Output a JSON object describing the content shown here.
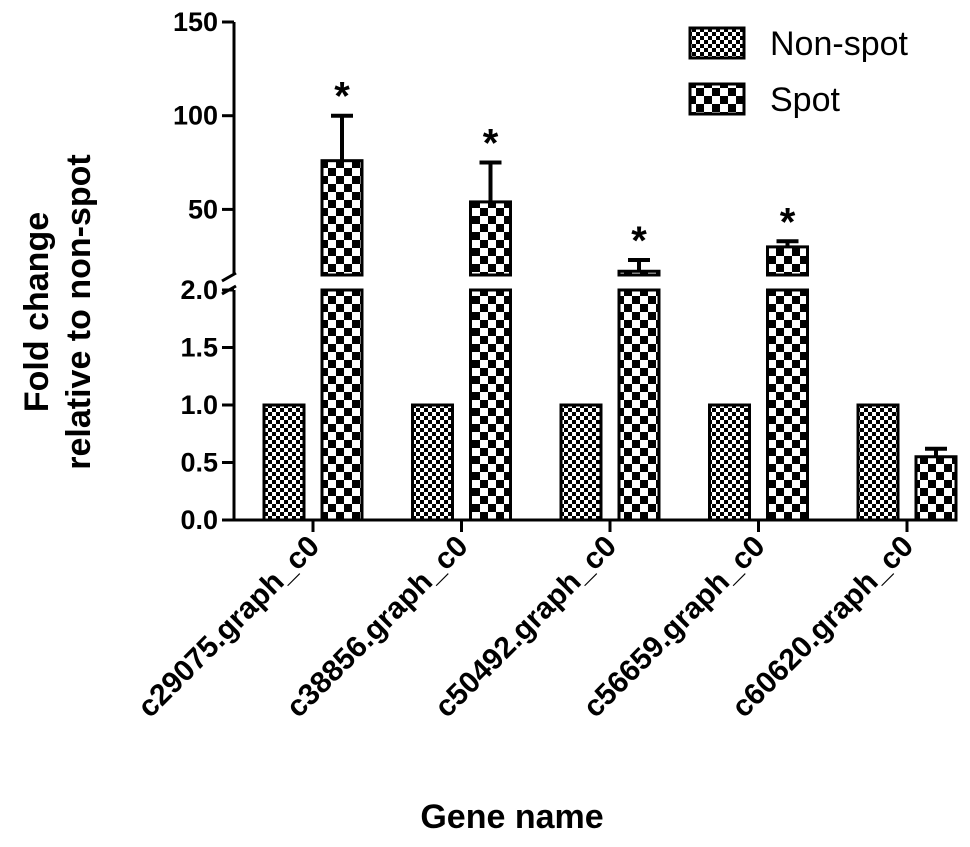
{
  "chart_data": {
    "type": "bar",
    "categories": [
      "c29075.graph_c0",
      "c38856.graph_c0",
      "c50492.graph_c0",
      "c56659.graph_c0",
      "c60620.graph_c0"
    ],
    "series": [
      {
        "name": "Non-spot",
        "values": [
          1.0,
          1.0,
          1.0,
          1.0,
          1.0
        ],
        "errors": [
          0,
          0,
          0,
          0,
          0
        ],
        "pattern": "fine-check"
      },
      {
        "name": "Spot",
        "values": [
          76,
          54,
          17,
          30,
          0.55
        ],
        "errors": [
          24,
          21,
          6,
          3,
          0.07
        ],
        "pattern": "coarse-check"
      }
    ],
    "significance": [
      "*",
      "*",
      "*",
      "*",
      ""
    ],
    "xlabel": "Gene name",
    "ylabel_lines": [
      "Fold change",
      "relative to non-spot"
    ],
    "y_axis": {
      "broken": true,
      "lower_segment": {
        "range": [
          0,
          2.0
        ],
        "ticks": [
          "0.0",
          "0.5",
          "1.0",
          "1.5",
          "2.0"
        ]
      },
      "upper_segment": {
        "range": [
          15,
          150
        ],
        "ticks": [
          "50",
          "100",
          "150"
        ]
      }
    },
    "legend_position": "top-right",
    "colors": {
      "bar_fill": "#000000",
      "bar_pattern": "#ffffff",
      "axis": "#000000"
    }
  }
}
